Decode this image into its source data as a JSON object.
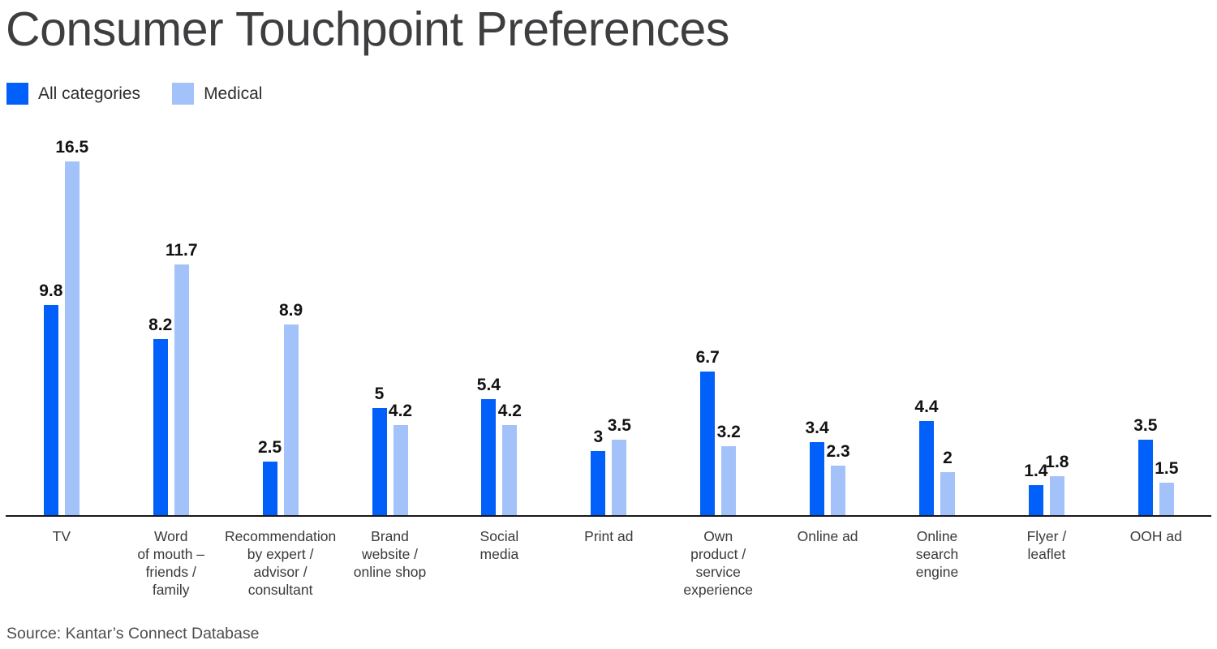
{
  "title": "Consumer Touchpoint Preferences",
  "legend": {
    "items": [
      {
        "label": "All categories",
        "color": "#015FFA"
      },
      {
        "label": "Medical",
        "color": "#A3C2FA"
      }
    ]
  },
  "source": "Source: Kantar’s Connect Database",
  "chart_data": {
    "type": "bar",
    "title": "Consumer Touchpoint Preferences",
    "categories": [
      "TV",
      "Word of mouth – friends / family",
      "Recommendation by expert / advisor / consultant",
      "Brand website / online shop",
      "Social media",
      "Print ad",
      "Own product / service experience",
      "Online ad",
      "Online search engine",
      "Flyer / leaflet",
      "OOH ad"
    ],
    "category_display_lines": [
      [
        "TV"
      ],
      [
        "Word",
        "of mouth –",
        "friends /",
        "family"
      ],
      [
        "Recommendation",
        "by expert /",
        "advisor /",
        "consultant"
      ],
      [
        "Brand",
        "website /",
        "online shop"
      ],
      [
        "Social",
        "media"
      ],
      [
        "Print ad"
      ],
      [
        "Own",
        "product /",
        "service",
        "experience"
      ],
      [
        "Online ad"
      ],
      [
        "Online",
        "search",
        "engine"
      ],
      [
        "Flyer /",
        "leaflet"
      ],
      [
        "OOH ad"
      ]
    ],
    "series": [
      {
        "name": "All categories",
        "color": "#015FFA",
        "values": [
          9.8,
          8.2,
          2.5,
          5,
          5.4,
          3,
          6.7,
          3.4,
          4.4,
          1.4,
          3.5
        ]
      },
      {
        "name": "Medical",
        "color": "#A3C2FA",
        "values": [
          16.5,
          11.7,
          8.9,
          4.2,
          4.2,
          3.5,
          3.2,
          2.3,
          2,
          1.8,
          1.5
        ]
      }
    ],
    "ylim": [
      0,
      17
    ],
    "grid": false,
    "y_axis_shown": false,
    "legend_position": "top-left",
    "value_labels": true,
    "source": "Source: Kantar’s Connect Database"
  }
}
